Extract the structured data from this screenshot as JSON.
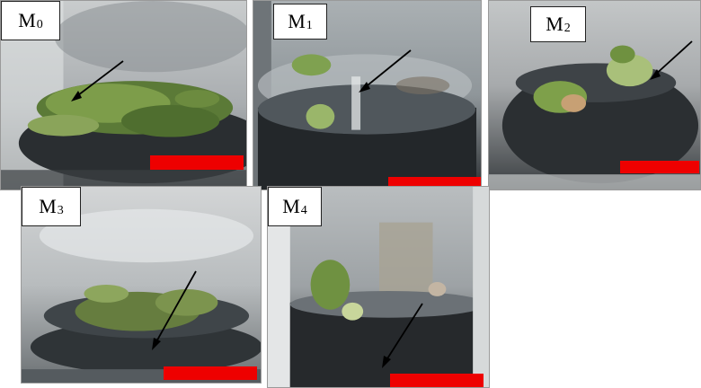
{
  "panels": [
    {
      "id": "M0",
      "main": "M",
      "sub": "0"
    },
    {
      "id": "M1",
      "main": "M",
      "sub": "1"
    },
    {
      "id": "M2",
      "main": "M",
      "sub": "2"
    },
    {
      "id": "M3",
      "main": "M",
      "sub": "3"
    },
    {
      "id": "M4",
      "main": "M",
      "sub": "4"
    }
  ],
  "colors": {
    "scale_bar": "#ee0000",
    "arrow": "#000000",
    "label_background": "#ffffff"
  }
}
